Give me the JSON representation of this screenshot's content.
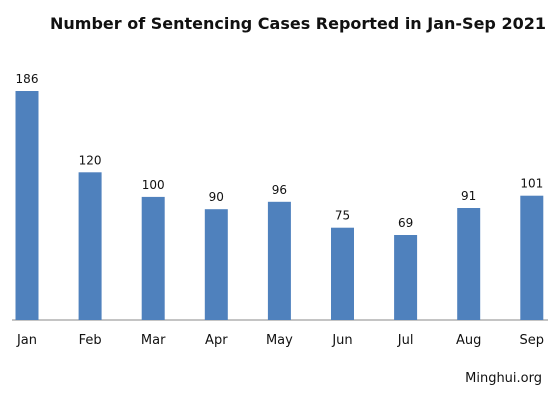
{
  "chart_data": {
    "type": "bar",
    "title": "Number of Sentencing Cases Reported in Jan-Sep 2021",
    "categories": [
      "Jan",
      "Feb",
      "Mar",
      "Apr",
      "May",
      "Jun",
      "Jul",
      "Aug",
      "Sep"
    ],
    "values": [
      186,
      120,
      100,
      90,
      96,
      75,
      69,
      91,
      101
    ],
    "xlabel": "",
    "ylabel": "",
    "ylim": [
      0,
      186
    ],
    "grid": false,
    "legend": "none",
    "bar_color": "#4f81bd",
    "data_labels": true
  },
  "source": "Minghui.org"
}
